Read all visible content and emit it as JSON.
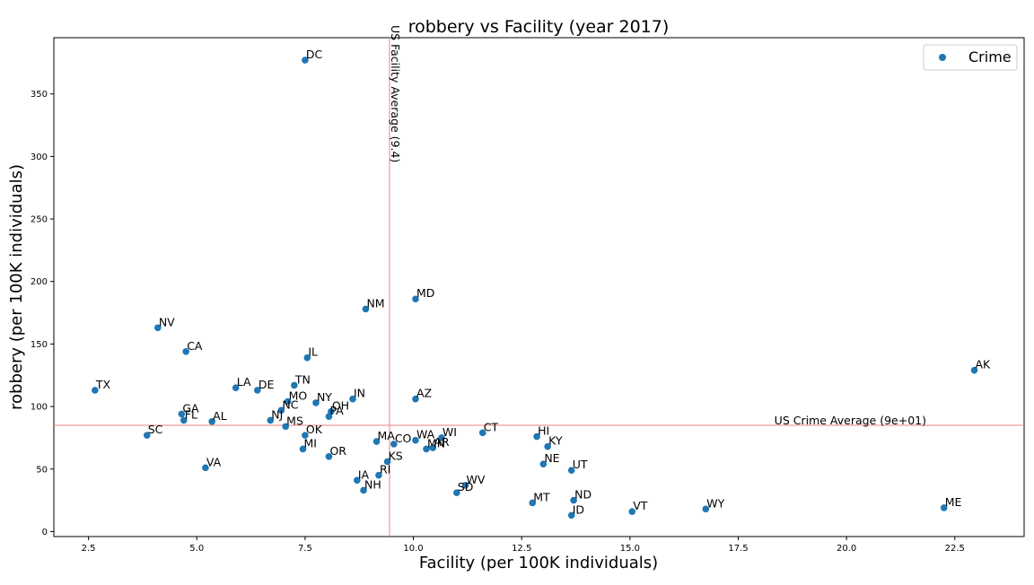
{
  "chart_data": {
    "type": "scatter",
    "title": "robbery vs Facility (year 2017)",
    "xlabel": "Facility (per 100K individuals)",
    "ylabel": "robbery (per 100K individuals)",
    "xlim": [
      1.7,
      24.1
    ],
    "ylim": [
      -4,
      395
    ],
    "xticks": [
      2.5,
      5.0,
      7.5,
      10.0,
      12.5,
      15.0,
      17.5,
      20.0,
      22.5
    ],
    "xtick_labels": [
      "2.5",
      "5.0",
      "7.5",
      "10.0",
      "12.5",
      "15.0",
      "17.5",
      "20.0",
      "22.5"
    ],
    "yticks": [
      0,
      50,
      100,
      150,
      200,
      250,
      300,
      350
    ],
    "ytick_labels": [
      "0",
      "50",
      "100",
      "150",
      "200",
      "250",
      "300",
      "350"
    ],
    "grid": false,
    "legend": {
      "position": "top-right",
      "entries": [
        "Crime"
      ]
    },
    "marker_color": "#1f77b4",
    "reference_color": "#f08080",
    "reference_lines": {
      "vertical": {
        "x": 9.45,
        "label": "US Facility Average (9.4)"
      },
      "horizontal": {
        "y": 85,
        "label": "US Crime Average (9e+01)"
      }
    },
    "series": [
      {
        "name": "Crime",
        "points": [
          {
            "label": "DC",
            "x": 7.5,
            "y": 377
          },
          {
            "label": "MD",
            "x": 10.05,
            "y": 186
          },
          {
            "label": "NM",
            "x": 8.9,
            "y": 178
          },
          {
            "label": "NV",
            "x": 4.1,
            "y": 163
          },
          {
            "label": "CA",
            "x": 4.75,
            "y": 144
          },
          {
            "label": "IL",
            "x": 7.55,
            "y": 139
          },
          {
            "label": "AK",
            "x": 22.95,
            "y": 129
          },
          {
            "label": "TN",
            "x": 7.25,
            "y": 117
          },
          {
            "label": "LA",
            "x": 5.9,
            "y": 115
          },
          {
            "label": "TX",
            "x": 2.65,
            "y": 113
          },
          {
            "label": "DE",
            "x": 6.4,
            "y": 113
          },
          {
            "label": "IN",
            "x": 8.6,
            "y": 106
          },
          {
            "label": "AZ",
            "x": 10.05,
            "y": 106
          },
          {
            "label": "MO",
            "x": 7.1,
            "y": 104
          },
          {
            "label": "NY",
            "x": 7.75,
            "y": 103
          },
          {
            "label": "NC",
            "x": 6.95,
            "y": 97
          },
          {
            "label": "OH",
            "x": 8.1,
            "y": 96
          },
          {
            "label": "GA",
            "x": 4.65,
            "y": 94
          },
          {
            "label": "PA",
            "x": 8.05,
            "y": 92
          },
          {
            "label": "FL",
            "x": 4.7,
            "y": 89
          },
          {
            "label": "NJ",
            "x": 6.7,
            "y": 89
          },
          {
            "label": "AL",
            "x": 5.35,
            "y": 88
          },
          {
            "label": "MS",
            "x": 7.05,
            "y": 84
          },
          {
            "label": "CT",
            "x": 11.6,
            "y": 79
          },
          {
            "label": "SC",
            "x": 3.85,
            "y": 77
          },
          {
            "label": "OK",
            "x": 7.5,
            "y": 77
          },
          {
            "label": "HI",
            "x": 12.85,
            "y": 76
          },
          {
            "label": "WI",
            "x": 10.65,
            "y": 75
          },
          {
            "label": "WA",
            "x": 10.05,
            "y": 73
          },
          {
            "label": "MA",
            "x": 9.15,
            "y": 72
          },
          {
            "label": "CO",
            "x": 9.55,
            "y": 70
          },
          {
            "label": "KY",
            "x": 13.1,
            "y": 68
          },
          {
            "label": "AR",
            "x": 10.45,
            "y": 67
          },
          {
            "label": "MN",
            "x": 10.3,
            "y": 66
          },
          {
            "label": "MI",
            "x": 7.45,
            "y": 66
          },
          {
            "label": "OR",
            "x": 8.05,
            "y": 60
          },
          {
            "label": "KS",
            "x": 9.4,
            "y": 56
          },
          {
            "label": "NE",
            "x": 13.0,
            "y": 54
          },
          {
            "label": "VA",
            "x": 5.2,
            "y": 51
          },
          {
            "label": "UT",
            "x": 13.65,
            "y": 49
          },
          {
            "label": "RI",
            "x": 9.2,
            "y": 45
          },
          {
            "label": "IA",
            "x": 8.7,
            "y": 41
          },
          {
            "label": "WV",
            "x": 11.2,
            "y": 37
          },
          {
            "label": "NH",
            "x": 8.85,
            "y": 33
          },
          {
            "label": "SD",
            "x": 11.0,
            "y": 31
          },
          {
            "label": "ND",
            "x": 13.7,
            "y": 25
          },
          {
            "label": "MT",
            "x": 12.75,
            "y": 23
          },
          {
            "label": "ME",
            "x": 22.25,
            "y": 19
          },
          {
            "label": "WY",
            "x": 16.75,
            "y": 18
          },
          {
            "label": "VT",
            "x": 15.05,
            "y": 16
          },
          {
            "label": "ID",
            "x": 13.65,
            "y": 13
          }
        ]
      }
    ]
  }
}
